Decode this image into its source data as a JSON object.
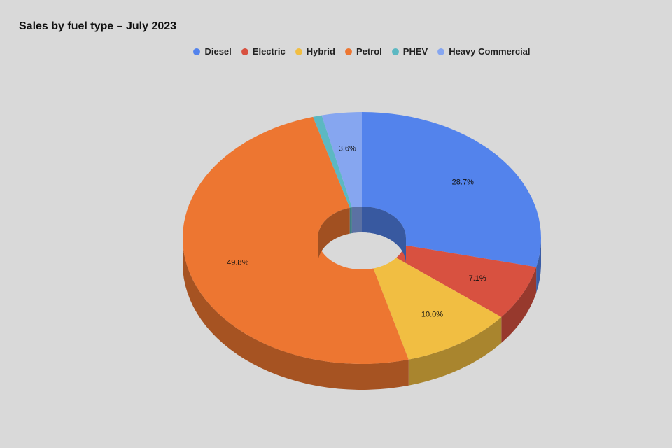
{
  "chart_data": {
    "type": "pie",
    "style": "3d-donut",
    "title": "Sales by fuel type – July 2023",
    "legend_position": "top",
    "series": [
      {
        "name": "Diesel",
        "value": 28.7,
        "label": "28.7%",
        "color": "#5383ec"
      },
      {
        "name": "Electric",
        "value": 7.1,
        "label": "7.1%",
        "color": "#d85140"
      },
      {
        "name": "Hybrid",
        "value": 10.0,
        "label": "10.0%",
        "color": "#f1be42"
      },
      {
        "name": "Petrol",
        "value": 49.8,
        "label": "49.8%",
        "color": "#ed7631"
      },
      {
        "name": "PHEV",
        "value": 0.8,
        "label": "",
        "color": "#5cb8c2"
      },
      {
        "name": "Heavy Commercial",
        "value": 3.6,
        "label": "3.6%",
        "color": "#86a6f0"
      }
    ]
  }
}
